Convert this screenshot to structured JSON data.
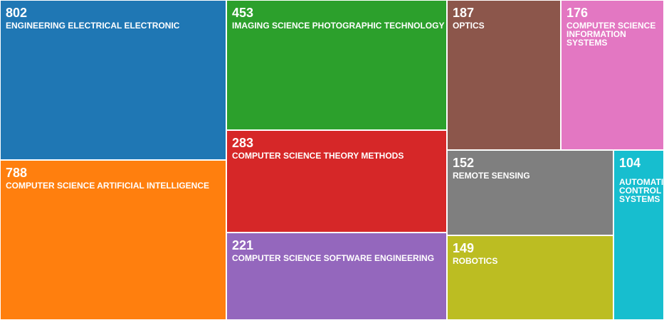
{
  "chart_data": {
    "type": "treemap",
    "items": [
      {
        "value": 802,
        "label": "ENGINEERING ELECTRICAL ELECTRONIC",
        "color": "#1f77b4"
      },
      {
        "value": 788,
        "label": "COMPUTER SCIENCE ARTIFICIAL INTELLIGENCE",
        "color": "#ff7f0e"
      },
      {
        "value": 453,
        "label": "IMAGING SCIENCE PHOTOGRAPHIC TECHNOLOGY",
        "color": "#2ca02c"
      },
      {
        "value": 283,
        "label": "COMPUTER SCIENCE THEORY METHODS",
        "color": "#d62728"
      },
      {
        "value": 221,
        "label": "COMPUTER SCIENCE SOFTWARE ENGINEERING",
        "color": "#9467bd"
      },
      {
        "value": 187,
        "label": "OPTICS",
        "color": "#8c564b"
      },
      {
        "value": 176,
        "label": "COMPUTER SCIENCE INFORMATION SYSTEMS",
        "color": "#e377c2"
      },
      {
        "value": 152,
        "label": "REMOTE SENSING",
        "color": "#7f7f7f"
      },
      {
        "value": 149,
        "label": "ROBOTICS",
        "color": "#bcbd22"
      },
      {
        "value": 104,
        "label": "AUTOMATION CONTROL SYSTEMS",
        "color": "#17becf"
      }
    ]
  }
}
